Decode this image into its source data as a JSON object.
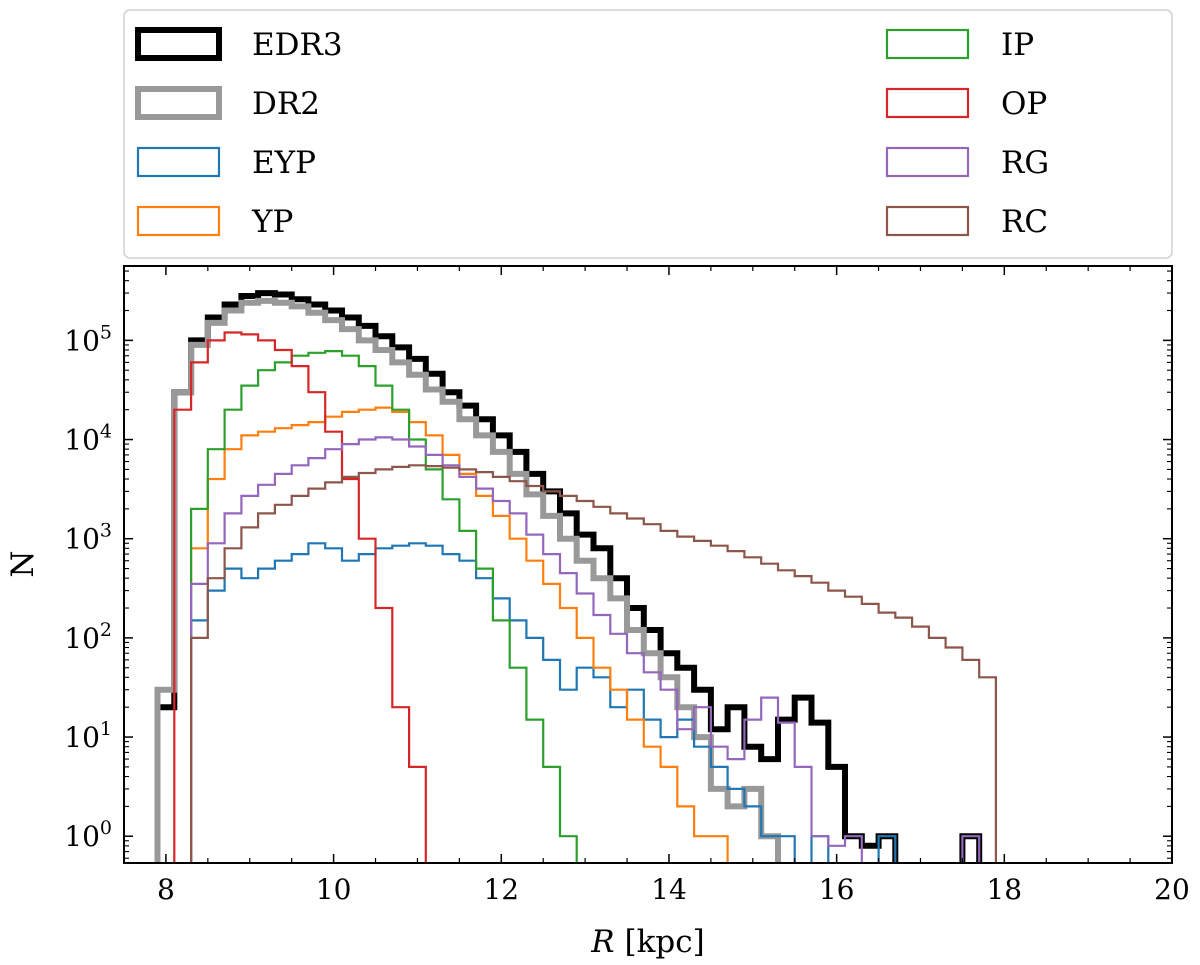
{
  "chart_data": {
    "type": "step-histogram",
    "title": "",
    "xlabel": "R [kpc]",
    "xlabel_italic": "R",
    "xlabel_unit": "[kpc]",
    "ylabel": "N",
    "yscale": "log",
    "xlim": [
      7.5,
      20
    ],
    "ylim_log10": [
      -0.27,
      5.75
    ],
    "xticks": [
      8,
      10,
      12,
      14,
      16,
      18,
      20
    ],
    "xtick_labels": [
      "8",
      "10",
      "12",
      "14",
      "16",
      "18",
      "20"
    ],
    "yticks_exp": [
      0,
      1,
      2,
      3,
      4,
      5
    ],
    "ytick_base": "10",
    "ytick_exps": [
      "0",
      "1",
      "2",
      "3",
      "4",
      "5"
    ],
    "bins": {
      "start": 7.9,
      "width": 0.2
    },
    "legend": {
      "placement": "above",
      "columns": 2
    },
    "series": [
      {
        "name": "EDR3",
        "color": "#000000",
        "style": "thick",
        "values": [
          20,
          30000,
          100000,
          170000,
          230000,
          280000,
          300000,
          290000,
          260000,
          230000,
          200000,
          170000,
          140000,
          110000,
          85000,
          65000,
          46000,
          30000,
          22000,
          16000,
          11000,
          7500,
          4500,
          3000,
          1800,
          1100,
          800,
          400,
          200,
          120,
          70,
          50,
          30,
          12,
          20,
          8,
          6,
          15,
          25,
          14,
          5,
          1,
          0.8,
          1,
          0.5,
          0.5,
          0.5,
          0.5,
          1,
          0.5
        ]
      },
      {
        "name": "DR2",
        "color": "#999999",
        "style": "thick",
        "values": [
          30,
          30000,
          90000,
          150000,
          200000,
          240000,
          250000,
          240000,
          220000,
          190000,
          160000,
          130000,
          100000,
          80000,
          60000,
          45000,
          32000,
          24000,
          16000,
          11000,
          7500,
          4500,
          2800,
          1700,
          1000,
          600,
          400,
          250,
          120,
          70,
          40,
          20,
          10,
          3,
          2,
          3,
          1,
          0.5,
          0.5,
          0.5,
          0.5,
          0.5,
          0.5,
          0.5,
          0.5,
          0.5,
          0.5,
          0.5,
          0.5,
          0.5
        ]
      },
      {
        "name": "EYP",
        "color": "#1f77b4",
        "style": "thin",
        "values": [
          0,
          0,
          150,
          300,
          500,
          400,
          500,
          600,
          700,
          900,
          800,
          600,
          700,
          800,
          850,
          900,
          850,
          700,
          600,
          400,
          250,
          150,
          100,
          60,
          30,
          50,
          40,
          20,
          30,
          15,
          10,
          15,
          8,
          5,
          3,
          2,
          1,
          1,
          0.5,
          1,
          0.5,
          0.5,
          0.5,
          1,
          0.5,
          0.5,
          0.5,
          0.5,
          0.5,
          0.5
        ]
      },
      {
        "name": "YP",
        "color": "#ff7f0e",
        "style": "thin",
        "values": [
          0,
          0,
          800,
          4000,
          8000,
          11000,
          12000,
          13000,
          14000,
          15000,
          17000,
          19000,
          20000,
          21000,
          19000,
          15000,
          11000,
          7000,
          4500,
          2700,
          1700,
          1000,
          600,
          350,
          200,
          100,
          50,
          30,
          15,
          8,
          5,
          2,
          1,
          1,
          0.5,
          0.5,
          0.5,
          0.5,
          0.5,
          0.5,
          0.5,
          0.5,
          0.5,
          0.5,
          0.5,
          0.5,
          0.5,
          0.5,
          0.5,
          0.5
        ]
      },
      {
        "name": "IP",
        "color": "#2ca02c",
        "style": "thin",
        "values": [
          0,
          0,
          2000,
          8000,
          20000,
          35000,
          50000,
          60000,
          70000,
          75000,
          78000,
          70000,
          55000,
          35000,
          20000,
          10000,
          5000,
          2500,
          1200,
          500,
          150,
          50,
          15,
          5,
          1,
          0.5,
          0.5,
          0.5,
          0.5,
          0.5,
          0.5,
          0.5,
          0.5,
          0.5,
          0.5,
          0.5,
          0.5,
          0.5,
          0.5,
          0.5,
          0.5,
          0.5,
          0.5,
          0.5,
          0.5,
          0.5,
          0.5,
          0.5,
          0.5,
          0.5
        ]
      },
      {
        "name": "OP",
        "color": "#d62728",
        "style": "thin",
        "values": [
          0,
          20000,
          60000,
          100000,
          120000,
          115000,
          100000,
          80000,
          55000,
          30000,
          12000,
          4000,
          1000,
          200,
          20,
          5,
          0,
          0,
          0,
          0,
          0,
          0,
          0,
          0,
          0,
          0,
          0,
          0,
          0,
          0,
          0,
          0,
          0,
          0,
          0,
          0,
          0,
          0,
          0,
          0,
          0,
          0,
          0,
          0,
          0,
          0,
          0,
          0,
          0,
          0
        ]
      },
      {
        "name": "RG",
        "color": "#9467bd",
        "style": "thin",
        "values": [
          0,
          0,
          350,
          900,
          1800,
          2700,
          3500,
          4500,
          5500,
          6500,
          8000,
          9000,
          10000,
          10500,
          10000,
          8500,
          7000,
          5500,
          4200,
          3200,
          2400,
          1800,
          1100,
          700,
          450,
          280,
          170,
          110,
          70,
          45,
          30,
          12,
          20,
          8,
          6,
          15,
          25,
          14,
          5,
          1,
          0.8,
          1,
          0.5,
          0.5,
          0.5,
          0.5,
          0.5,
          0.5,
          1,
          0.5
        ]
      },
      {
        "name": "RC",
        "color": "#8c564b",
        "style": "thin",
        "values": [
          0,
          0,
          100,
          400,
          800,
          1300,
          1800,
          2200,
          2700,
          3200,
          3700,
          4200,
          4600,
          5000,
          5300,
          5500,
          5400,
          5200,
          5000,
          4700,
          4200,
          3800,
          3400,
          3000,
          2700,
          2400,
          2100,
          1800,
          1600,
          1400,
          1200,
          1050,
          950,
          850,
          750,
          650,
          560,
          480,
          420,
          360,
          300,
          260,
          220,
          180,
          160,
          130,
          100,
          80,
          60,
          40
        ]
      }
    ]
  }
}
